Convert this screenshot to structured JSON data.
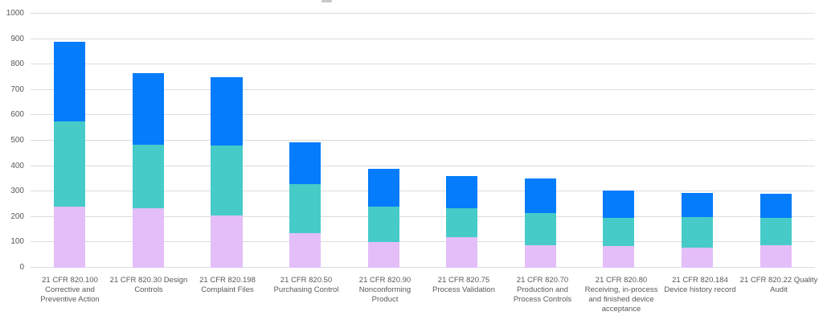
{
  "page": {
    "background_color": "#ffffff",
    "title_clipped_at_top": true
  },
  "chart_data": {
    "type": "bar",
    "subtype": "stacked-vertical",
    "title": "",
    "xlabel": "",
    "ylabel": "",
    "legend": "none",
    "grid": true,
    "gridline_color": "#dcdcdc",
    "axis_text_color": "#595959",
    "y_axis": {
      "min": 0,
      "max": 1000,
      "tick_step": 100,
      "ticks": [
        0,
        100,
        200,
        300,
        400,
        500,
        600,
        700,
        800,
        900,
        1000
      ]
    },
    "categories": [
      "21 CFR 820.100 Corrective and Preventive Action",
      "21 CFR 820.30 Design Controls",
      "21 CFR 820.198 Complaint Files",
      "21 CFR 820.50 Purchasing Control",
      "21 CFR 820.90 Nonconforming Product",
      "21 CFR 820.75 Process Validation",
      "21 CFR 820.70 Production and Process Controls",
      "21 CFR 820.80 Receiving, in-process and finished device acceptance",
      "21 CFR 820.184 Device history record",
      "21 CFR 820.22 Quality Audit"
    ],
    "series": [
      {
        "stack_position": "bottom",
        "color": "#e3bef8",
        "color_name": "lavender",
        "values": [
          240,
          235,
          205,
          135,
          100,
          120,
          90,
          85,
          80,
          90
        ]
      },
      {
        "stack_position": "middle",
        "color": "#46cbc8",
        "color_name": "teal",
        "values": [
          335,
          250,
          275,
          195,
          140,
          115,
          125,
          110,
          120,
          105
        ]
      },
      {
        "stack_position": "top",
        "color": "#047cfb",
        "color_name": "blue",
        "values": [
          315,
          280,
          270,
          165,
          150,
          125,
          135,
          110,
          95,
          95
        ]
      }
    ],
    "stack_totals": [
      890,
      765,
      750,
      495,
      390,
      360,
      350,
      305,
      295,
      290
    ]
  }
}
